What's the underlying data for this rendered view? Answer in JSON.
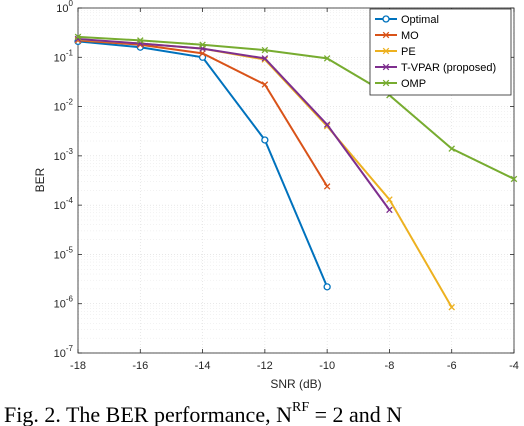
{
  "chart_data": {
    "type": "line",
    "title": "",
    "xlabel": "SNR (dB)",
    "ylabel": "BER",
    "x_scale": "linear",
    "y_scale": "log",
    "xlim": [
      -18,
      -4
    ],
    "ylim": [
      1e-07,
      1
    ],
    "x_ticks": [
      -18,
      -16,
      -14,
      -12,
      -10,
      -8,
      -6,
      -4
    ],
    "y_ticks": [
      {
        "value": 1e-07,
        "base": "10",
        "exp": "-7"
      },
      {
        "value": 1e-06,
        "base": "10",
        "exp": "-6"
      },
      {
        "value": 1e-05,
        "base": "10",
        "exp": "-5"
      },
      {
        "value": 0.0001,
        "base": "10",
        "exp": "-4"
      },
      {
        "value": 0.001,
        "base": "10",
        "exp": "-3"
      },
      {
        "value": 0.01,
        "base": "10",
        "exp": "-2"
      },
      {
        "value": 0.1,
        "base": "10",
        "exp": "-1"
      },
      {
        "value": 1,
        "base": "10",
        "exp": "0"
      }
    ],
    "grid": true,
    "legend_position": "top-right",
    "series": [
      {
        "name": "Optimal",
        "color": "#0072BD",
        "marker": "circle",
        "x": [
          -18,
          -16,
          -14,
          -12,
          -10
        ],
        "y": [
          0.21,
          0.16,
          0.1,
          0.0021,
          2.2e-06
        ]
      },
      {
        "name": "MO",
        "color": "#D95319",
        "marker": "x",
        "x": [
          -18,
          -16,
          -14,
          -12,
          -10
        ],
        "y": [
          0.22,
          0.18,
          0.12,
          0.028,
          0.00024
        ]
      },
      {
        "name": "PE",
        "color": "#EDB120",
        "marker": "x",
        "x": [
          -18,
          -16,
          -14,
          -12,
          -10,
          -8,
          -6
        ],
        "y": [
          0.23,
          0.19,
          0.15,
          0.09,
          0.004,
          0.00013,
          8.5e-07
        ]
      },
      {
        "name": "T-VPAR (proposed)",
        "color": "#7E2F8E",
        "marker": "x",
        "x": [
          -18,
          -16,
          -14,
          -12,
          -10,
          -8
        ],
        "y": [
          0.235,
          0.19,
          0.15,
          0.095,
          0.0043,
          8e-05
        ]
      },
      {
        "name": "OMP",
        "color": "#77AC30",
        "marker": "x",
        "x": [
          -18,
          -16,
          -14,
          -12,
          -10,
          -8,
          -6,
          -4
        ],
        "y": [
          0.26,
          0.22,
          0.18,
          0.14,
          0.095,
          0.017,
          0.0014,
          0.00034
        ]
      }
    ]
  },
  "caption": {
    "text": "Fig. 2. The BER performance, N",
    "sup": "RF",
    "tail": " = 2 and N"
  }
}
